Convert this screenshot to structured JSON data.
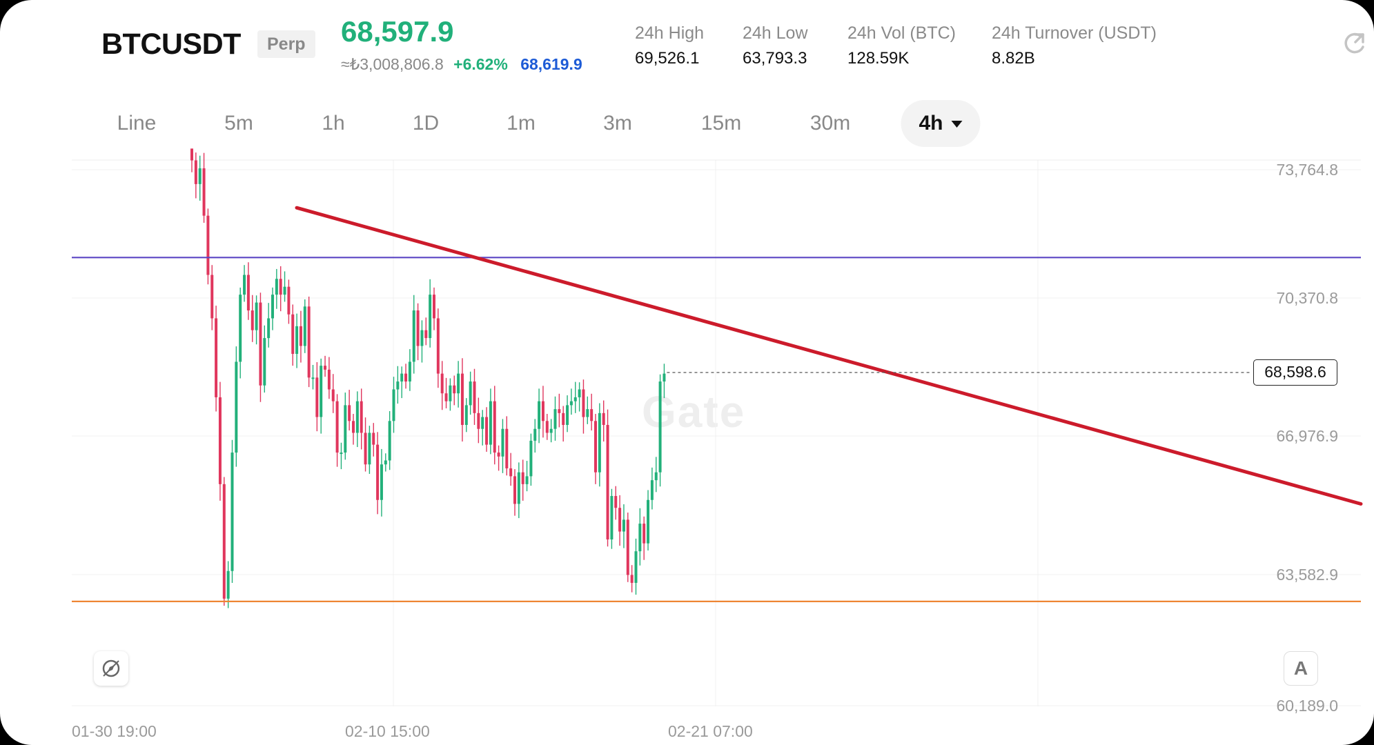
{
  "header": {
    "symbol": "BTCUSDT",
    "contract_type": "Perp",
    "last_price": "68,597.9",
    "last_price_color": "#21b07a",
    "approx_value": "≈₺3,008,806.8",
    "change_pct": "+6.62%",
    "mark_price": "68,619.9",
    "stats": [
      {
        "label": "24h  High",
        "value": "69,526.1"
      },
      {
        "label": "24h  Low",
        "value": "63,793.3"
      },
      {
        "label": "24h  Vol (BTC)",
        "value": "128.59K"
      },
      {
        "label": "24h  Turnover (USDT)",
        "value": "8.82B"
      }
    ],
    "refresh_icon": "refresh-icon"
  },
  "intervals": {
    "items": [
      "Line",
      "5m",
      "1h",
      "1D",
      "1m",
      "3m",
      "15m",
      "30m",
      "4h"
    ],
    "active": "4h"
  },
  "chart": {
    "current_price_tag": "68,598.6",
    "watermark": "Gate",
    "fab_left_icon": "compass-icon",
    "fab_right_label": "A"
  },
  "colors": {
    "up": "#22b07a",
    "down": "#e0365d",
    "trendline": "#cc1b2b",
    "resistance": "#5a44c4",
    "support": "#ee8533"
  },
  "chart_data": {
    "type": "candlestick",
    "y_ticks": [
      "73,764.8",
      "70,370.8",
      "66,976.9",
      "63,582.9",
      "60,189.0"
    ],
    "x_ticks": [
      "01-30 19:00",
      "02-10 15:00",
      "02-21 07:00"
    ],
    "ylim": [
      60189.0,
      73764.8
    ],
    "grid": true,
    "horizontal_lines": [
      {
        "name": "resistance",
        "price": 71540
      },
      {
        "name": "support",
        "price": 62830
      }
    ],
    "trendline": {
      "from_price": 72800,
      "to_price": 65300
    },
    "close_prices": [
      74000,
      73400,
      73800,
      72600,
      71100,
      70000,
      68000,
      65800,
      62900,
      63600,
      66600,
      68900,
      70600,
      71100,
      70200,
      69700,
      70400,
      68300,
      69500,
      70000,
      70600,
      71000,
      70600,
      70800,
      70100,
      69100,
      69800,
      69300,
      70300,
      68500,
      68500,
      67500,
      68800,
      68700,
      68200,
      67900,
      66600,
      66600,
      67800,
      67400,
      67100,
      67900,
      67100,
      66300,
      67100,
      66800,
      65400,
      66300,
      66400,
      67400,
      68200,
      68400,
      68600,
      68400,
      68900,
      70200,
      69300,
      69700,
      69500,
      70600,
      70000,
      68600,
      68100,
      67900,
      68300,
      68100,
      68600,
      67300,
      67800,
      68400,
      67600,
      67200,
      67500,
      66800,
      67900,
      66600,
      66500,
      67200,
      66200,
      66000,
      65300,
      66100,
      65800,
      66000,
      66900,
      67200,
      67900,
      67400,
      67100,
      67200,
      67700,
      67600,
      67300,
      67800,
      67900,
      68000,
      68200,
      67500,
      67700,
      67400,
      66100,
      67600,
      67300,
      64400,
      65500,
      65200,
      64600,
      64900,
      63500,
      63300,
      64100,
      64800,
      64300,
      65400,
      65900,
      66100,
      68400,
      68600
    ]
  }
}
